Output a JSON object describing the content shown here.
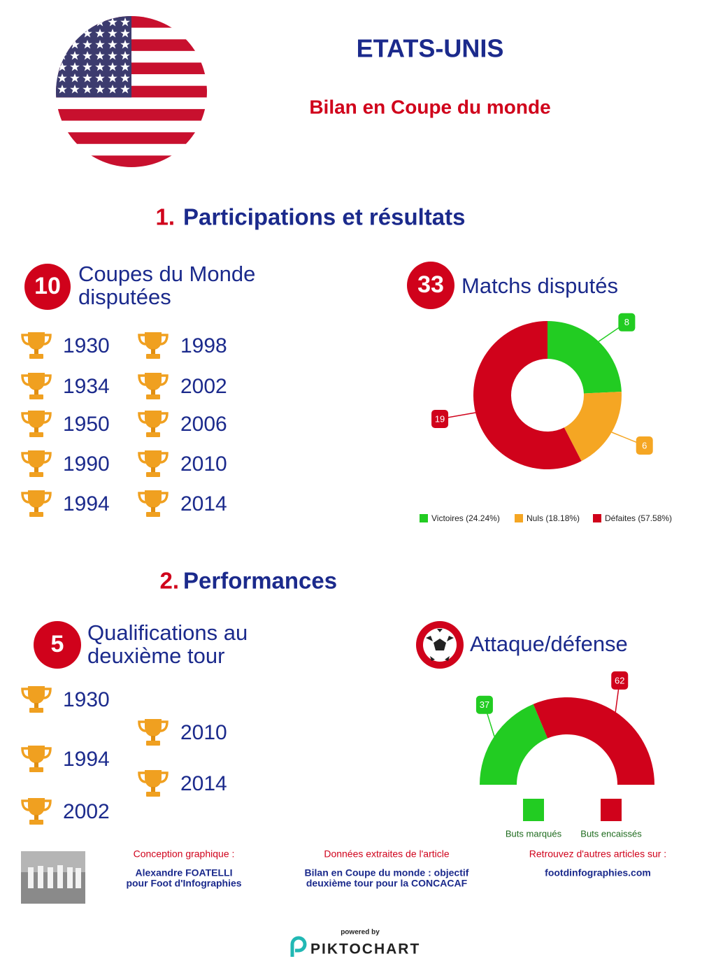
{
  "header": {
    "title": "ETATS-UNIS",
    "subtitle": "Bilan en Coupe du monde"
  },
  "section1": {
    "number": "1.",
    "title": "Participations et résultats",
    "participations": {
      "count": 10,
      "label_lines": [
        "Coupes du Monde",
        "disputées"
      ],
      "years": [
        1930,
        1934,
        1950,
        1990,
        1994,
        1998,
        2002,
        2006,
        2010,
        2014
      ]
    },
    "matches": {
      "count": 33,
      "label": "Matchs disputés"
    }
  },
  "section2": {
    "number": "2.",
    "title": "Performances",
    "qualifications": {
      "count": 5,
      "label_lines": [
        "Qualifications au",
        "deuxième tour"
      ],
      "years": [
        1930,
        1994,
        2002,
        2010,
        2014
      ]
    },
    "attack_defense": {
      "label": "Attaque/défense"
    }
  },
  "chart_data": [
    {
      "type": "donut",
      "categories": [
        "Victoires (24.24%)",
        "Nuls (18.18%)",
        "Défaites (57.58%)"
      ],
      "values": [
        8,
        6,
        19
      ],
      "colors": [
        "#22cc22",
        "#f5a623",
        "#d0021b"
      ]
    },
    {
      "type": "halfdonut",
      "categories": [
        "Buts marqués",
        "Buts encaissés"
      ],
      "values": [
        37,
        62
      ],
      "colors": [
        "#22cc22",
        "#d0021b"
      ]
    }
  ],
  "footer": {
    "credits": [
      {
        "heading": "Conception graphique :",
        "lines": [
          "Alexandre FOATELLI",
          "pour Foot d'Infographies"
        ]
      },
      {
        "heading": "Données extraites de l'article",
        "lines": [
          "Bilan en Coupe du monde : objectif",
          "deuxième tour pour la CONCACAF"
        ]
      },
      {
        "heading": "Retrouvez d'autres articles sur :",
        "lines": [
          "footdinfographies.com"
        ]
      }
    ],
    "powered_by": "powered by",
    "brand": "PIKTOCHART"
  }
}
